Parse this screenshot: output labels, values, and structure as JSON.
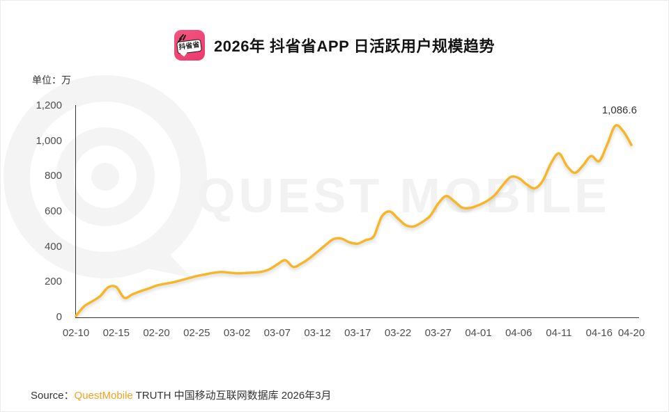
{
  "header": {
    "icon_text": "抖省省",
    "title": "2026年 抖省省APP 日活跃用户规模趋势"
  },
  "unit_label": "单位：万",
  "annotation": {
    "max_label": "1,086.6"
  },
  "watermark": {
    "text": "QUEST MOBILE"
  },
  "source": {
    "prefix": "Source：",
    "brand": "QuestMobile",
    "suffix": " TRUTH 中国移动互联网数据库 2026年3月"
  },
  "colors": {
    "line": "#F7B52C",
    "axis": "#333333",
    "tick_label": "#4D4D4D",
    "brand_orange": "#F7A01E",
    "icon_pink": "#EC3A6D",
    "watermark_gray": "#F3F3F3"
  },
  "chart_data": {
    "type": "line",
    "title": "2026年 抖省省APP 日活跃用户规模趋势",
    "unit": "万",
    "grid": false,
    "legend": false,
    "smooth": true,
    "line_color": "#F7B52C",
    "ylim": [
      0,
      1200
    ],
    "y_ticks": [
      0,
      200,
      400,
      600,
      800,
      1000,
      1200
    ],
    "tick_labels": [
      "02-10",
      "02-15",
      "02-20",
      "02-25",
      "03-02",
      "03-07",
      "03-12",
      "03-17",
      "03-22",
      "03-27",
      "04-01",
      "04-06",
      "04-11",
      "04-16",
      "04-20"
    ],
    "tick_indices": [
      0,
      5,
      10,
      15,
      20,
      25,
      30,
      35,
      40,
      45,
      50,
      55,
      60,
      65,
      69
    ],
    "dates": [
      "02-10",
      "02-11",
      "02-12",
      "02-13",
      "02-14",
      "02-15",
      "02-16",
      "02-17",
      "02-18",
      "02-19",
      "02-20",
      "02-21",
      "02-22",
      "02-23",
      "02-24",
      "02-25",
      "02-26",
      "02-27",
      "02-28",
      "03-01",
      "03-02",
      "03-03",
      "03-04",
      "03-05",
      "03-06",
      "03-07",
      "03-08",
      "03-09",
      "03-10",
      "03-11",
      "03-12",
      "03-13",
      "03-14",
      "03-15",
      "03-16",
      "03-17",
      "03-18",
      "03-19",
      "03-20",
      "03-21",
      "03-22",
      "03-23",
      "03-24",
      "03-25",
      "03-26",
      "03-27",
      "03-28",
      "03-29",
      "03-30",
      "03-31",
      "04-01",
      "04-02",
      "04-03",
      "04-04",
      "04-05",
      "04-06",
      "04-07",
      "04-08",
      "04-09",
      "04-10",
      "04-11",
      "04-12",
      "04-13",
      "04-14",
      "04-15",
      "04-16",
      "04-17",
      "04-18",
      "04-19",
      "04-20"
    ],
    "values": [
      8,
      62,
      90,
      120,
      170,
      172,
      111,
      130,
      148,
      163,
      180,
      190,
      198,
      210,
      222,
      234,
      243,
      252,
      257,
      254,
      250,
      251,
      254,
      258,
      272,
      300,
      324,
      286,
      305,
      335,
      372,
      410,
      444,
      446,
      425,
      418,
      438,
      460,
      572,
      600,
      560,
      522,
      516,
      540,
      575,
      645,
      688,
      658,
      622,
      621,
      636,
      658,
      692,
      748,
      796,
      790,
      754,
      732,
      775,
      872,
      930,
      858,
      820,
      862,
      915,
      886,
      980,
      1086.6,
      1055,
      978
    ],
    "max_value": 1086.6,
    "max_value_date": "04-18"
  }
}
